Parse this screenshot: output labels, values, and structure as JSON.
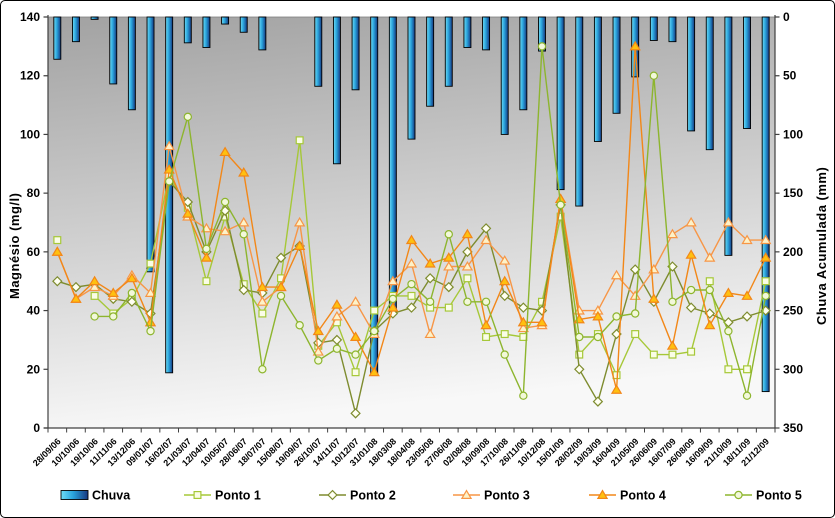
{
  "chart": {
    "left_axis_title": "Magnésio  (mg/l)",
    "right_axis_title": "Chuva Acumulada (mm)"
  },
  "chart_data": {
    "type": "combo-bar-line",
    "title": "",
    "categories": [
      "28/09/06",
      "10/10/06",
      "19/10/06",
      "11/11/06",
      "13/12/06",
      "09/01/07",
      "16/02/07",
      "21/03/07",
      "12/04/07",
      "10/05/07",
      "28/06/07",
      "18/07/07",
      "15/08/07",
      "19/09/07",
      "26/10/07",
      "14/11/07",
      "10/12/07",
      "31/01/08",
      "18/03/08",
      "18/04/08",
      "23/05/08",
      "27/06/08",
      "02/08/08",
      "19/09/08",
      "17/10/08",
      "26/11/08",
      "10/12/08",
      "15/01/09",
      "28/02/09",
      "19/03/09",
      "16/04/09",
      "21/05/09",
      "26/06/09",
      "16/07/09",
      "26/08/09",
      "16/09/09",
      "21/10/09",
      "18/11/09",
      "21/12/09"
    ],
    "left_axis": {
      "label": "Magnésio  (mg/l)",
      "min": 0,
      "max": 140,
      "step": 20,
      "ticks": [
        0,
        20,
        40,
        60,
        80,
        100,
        120,
        140
      ]
    },
    "right_axis": {
      "label": "Chuva Acumulada (mm)",
      "min": 0,
      "max": 350,
      "step": 50,
      "inverted": true,
      "ticks": [
        0,
        50,
        100,
        150,
        200,
        250,
        300,
        350
      ]
    },
    "grid": false,
    "legend_position": "bottom",
    "bar_series": {
      "name": "Chuva",
      "axis": "right",
      "unit": "mm",
      "color_light": "#6FDCF5",
      "color_dark": "#16367F",
      "values": [
        36,
        21,
        2,
        57,
        79,
        217,
        303,
        22,
        26,
        6,
        13,
        28,
        0,
        0,
        59,
        125,
        62,
        304,
        253,
        104,
        76,
        59,
        26,
        28,
        100,
        79,
        29,
        147,
        161,
        106,
        82,
        51,
        20,
        21,
        97,
        113,
        203,
        95,
        319
      ]
    },
    "line_series": [
      {
        "name": "Ponto 1",
        "axis": "left",
        "unit": "mg/l",
        "marker": "square",
        "color": "#A6C838",
        "marker_fill": "#FAFDE6",
        "values": [
          64,
          null,
          45,
          39,
          44,
          56,
          86,
          75,
          50,
          72,
          49,
          39,
          51,
          98,
          28,
          36,
          19,
          40,
          45,
          45,
          41,
          41,
          51,
          31,
          32,
          31,
          43,
          72,
          25,
          32,
          18,
          32,
          25,
          25,
          26,
          50,
          20,
          20,
          50
        ]
      },
      {
        "name": "Ponto 2",
        "axis": "left",
        "unit": "mg/l",
        "marker": "diamond",
        "color": "#7E8C2F",
        "marker_fill": "#FFFFF2",
        "values": [
          50,
          48,
          49,
          44,
          43,
          39,
          84,
          77,
          60,
          74,
          47,
          46,
          58,
          62,
          29,
          30,
          5,
          33,
          39,
          41,
          51,
          48,
          60,
          68,
          45,
          41,
          40,
          76,
          20,
          9,
          32,
          54,
          43,
          55,
          41,
          39,
          36,
          38,
          40
        ]
      },
      {
        "name": "Ponto 3",
        "axis": "left",
        "unit": "mg/l",
        "marker": "triangle",
        "color": "#F79646",
        "marker_fill": "#FDF2C8",
        "values": [
          60,
          44,
          48,
          45,
          52,
          46,
          96,
          72,
          68,
          67,
          70,
          43,
          48,
          70,
          26,
          38,
          43,
          32,
          50,
          56,
          32,
          55,
          55,
          64,
          57,
          34,
          35,
          78,
          40,
          40,
          52,
          45,
          54,
          66,
          70,
          58,
          70,
          64,
          64
        ]
      },
      {
        "name": "Ponto 4",
        "axis": "left",
        "unit": "mg/l",
        "marker": "triangle",
        "color": "#F28718",
        "marker_fill": "#FFC010",
        "values": [
          60,
          44,
          50,
          46,
          51,
          36,
          88,
          73,
          58,
          94,
          87,
          48,
          48,
          62,
          33,
          42,
          31,
          19,
          41,
          64,
          56,
          58,
          66,
          35,
          50,
          36,
          36,
          78,
          37,
          38,
          13,
          130,
          44,
          28,
          59,
          35,
          46,
          45,
          58
        ]
      },
      {
        "name": "Ponto 5",
        "axis": "left",
        "unit": "mg/l",
        "marker": "circle",
        "color": "#8DB52E",
        "marker_fill": "#F2F8DA",
        "values": [
          null,
          null,
          38,
          38,
          46,
          33,
          84,
          106,
          61,
          77,
          66,
          20,
          45,
          35,
          23,
          27,
          25,
          33,
          44,
          49,
          43,
          66,
          43,
          43,
          25,
          11,
          130,
          76,
          31,
          31,
          38,
          39,
          120,
          43,
          47,
          47,
          33,
          11,
          45
        ]
      }
    ],
    "legend": [
      "Chuva",
      "Ponto 1",
      "Ponto 2",
      "Ponto 3",
      "Ponto 4",
      "Ponto 5"
    ]
  }
}
